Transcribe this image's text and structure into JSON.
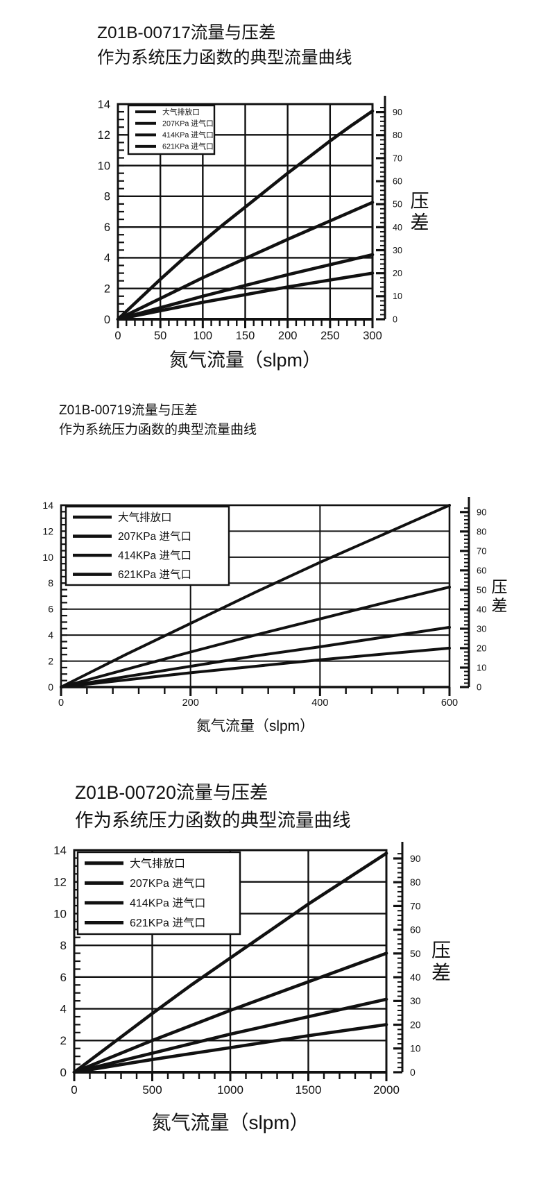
{
  "page": {
    "background": "#ffffff",
    "ink": "#111111"
  },
  "charts": [
    {
      "title_line1": "Z01B-00717流量与压差",
      "title_line2": "作为系统压力函数的典型流量曲线",
      "xlabel": "氮气流量（slpm）",
      "right_axis_label": "压差"
    },
    {
      "title_line1": "Z01B-00719流量与压差",
      "title_line2": "作为系统压力函数的典型流量曲线",
      "xlabel": "氮气流量（slpm）",
      "right_axis_label": "压差"
    },
    {
      "title_line1": "Z01B-00720流量与压差",
      "title_line2": "作为系统压力函数的典型流量曲线",
      "xlabel": "氮气流量（slpm）",
      "right_axis_label": "压差"
    }
  ],
  "chart_data": [
    {
      "type": "line",
      "title": "Z01B-00717流量与压差 作为系统压力函数的典型流量曲线",
      "xlabel": "氮气流量（slpm）",
      "ylabel_right": "压差",
      "x_range": [
        0,
        300
      ],
      "x_major_ticks": [
        0,
        50,
        100,
        150,
        200,
        250,
        300
      ],
      "x_minor_step": 10,
      "y_left_range": [
        0,
        14
      ],
      "y_left_major_step": 2,
      "y_left_minor_step": 0.5,
      "y_right_range": [
        0,
        93.5
      ],
      "y_right_labels": [
        0,
        10,
        20,
        30,
        40,
        50,
        60,
        70,
        80,
        90
      ],
      "y_right_minor_step": 2,
      "grid": true,
      "legend_position": "top-left",
      "series": [
        {
          "name": "大气排放口",
          "x": [
            0,
            25,
            50,
            75,
            100,
            125,
            150,
            175,
            200,
            225,
            250,
            275,
            300
          ],
          "y": [
            0,
            1.3,
            2.6,
            3.85,
            5.05,
            6.2,
            7.3,
            8.4,
            9.5,
            10.55,
            11.6,
            12.6,
            13.55
          ]
        },
        {
          "name": "207KPa 进气口",
          "x": [
            0,
            50,
            100,
            150,
            200,
            250,
            300
          ],
          "y": [
            0,
            1.35,
            2.7,
            3.95,
            5.2,
            6.4,
            7.6
          ]
        },
        {
          "name": "414KPa 进气口",
          "x": [
            0,
            50,
            100,
            150,
            200,
            250,
            300
          ],
          "y": [
            0,
            0.75,
            1.5,
            2.2,
            2.9,
            3.55,
            4.2
          ]
        },
        {
          "name": "621KPa 进气口",
          "x": [
            0,
            50,
            100,
            150,
            200,
            250,
            300
          ],
          "y": [
            0,
            0.55,
            1.1,
            1.6,
            2.1,
            2.55,
            3.0
          ]
        }
      ]
    },
    {
      "type": "line",
      "title": "Z01B-00719流量与压差 作为系统压力函数的典型流量曲线",
      "xlabel": "氮气流量（slpm）",
      "ylabel_right": "压差",
      "x_range": [
        0,
        600
      ],
      "x_major_ticks": [
        0,
        200,
        400,
        600
      ],
      "x_minor_step": 40,
      "y_left_range": [
        0,
        14
      ],
      "y_left_major_step": 2,
      "y_left_minor_step": 0.5,
      "y_right_range": [
        0,
        93.5
      ],
      "y_right_labels": [
        0,
        10,
        20,
        30,
        40,
        50,
        60,
        70,
        80,
        90
      ],
      "y_right_minor_step": 2,
      "grid": true,
      "legend_position": "top-left",
      "series": [
        {
          "name": "大气排放口",
          "x": [
            0,
            100,
            200,
            300,
            400,
            500,
            600
          ],
          "y": [
            0,
            2.5,
            4.9,
            7.3,
            9.6,
            11.8,
            14.0
          ]
        },
        {
          "name": "207KPa 进气口",
          "x": [
            0,
            100,
            200,
            300,
            400,
            500,
            600
          ],
          "y": [
            0,
            1.35,
            2.7,
            4.0,
            5.25,
            6.5,
            7.7
          ]
        },
        {
          "name": "414KPa 进气口",
          "x": [
            0,
            100,
            200,
            300,
            400,
            500,
            600
          ],
          "y": [
            0,
            0.8,
            1.6,
            2.4,
            3.1,
            3.85,
            4.6
          ]
        },
        {
          "name": "621KPa 进气口",
          "x": [
            0,
            100,
            200,
            300,
            400,
            500,
            600
          ],
          "y": [
            0,
            0.55,
            1.1,
            1.6,
            2.1,
            2.55,
            3.0
          ]
        }
      ]
    },
    {
      "type": "line",
      "title": "Z01B-00720流量与压差 作为系统压力函数的典型流量曲线",
      "xlabel": "氮气流量（slpm）",
      "ylabel_right": "压差",
      "x_range": [
        0,
        2000
      ],
      "x_major_ticks": [
        0,
        500,
        1000,
        1500,
        2000
      ],
      "x_minor_step": 100,
      "y_left_range": [
        0,
        14
      ],
      "y_left_major_step": 2,
      "y_left_minor_step": 0.5,
      "y_right_range": [
        0,
        93.5
      ],
      "y_right_labels": [
        0,
        10,
        20,
        30,
        40,
        50,
        60,
        70,
        80,
        90
      ],
      "y_right_minor_step": 2,
      "grid": true,
      "legend_position": "top-left",
      "series": [
        {
          "name": "大气排放口",
          "x": [
            0,
            250,
            500,
            750,
            1000,
            1250,
            1500,
            1750,
            2000
          ],
          "y": [
            0,
            1.85,
            3.7,
            5.5,
            7.2,
            8.9,
            10.6,
            12.2,
            13.8
          ]
        },
        {
          "name": "207KPa 进气口",
          "x": [
            0,
            500,
            1000,
            1500,
            2000
          ],
          "y": [
            0,
            2.0,
            3.9,
            5.7,
            7.5
          ]
        },
        {
          "name": "414KPa 进气口",
          "x": [
            0,
            500,
            1000,
            1500,
            2000
          ],
          "y": [
            0,
            1.2,
            2.4,
            3.5,
            4.6
          ]
        },
        {
          "name": "621KPa 进气口",
          "x": [
            0,
            500,
            1000,
            1500,
            2000
          ],
          "y": [
            0,
            0.8,
            1.55,
            2.3,
            3.0
          ]
        }
      ]
    }
  ]
}
